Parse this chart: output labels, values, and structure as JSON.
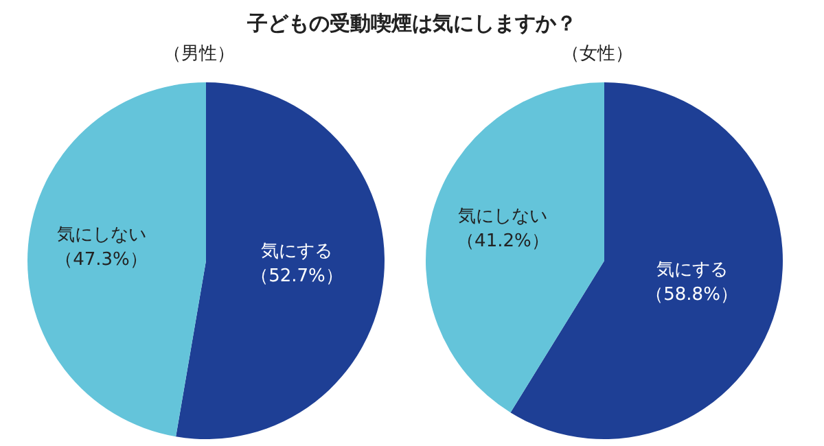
{
  "chart_data": [
    {
      "type": "pie",
      "title": "子どもの受動喫煙は気にしますか？",
      "subtitle": "（男性）",
      "categories": [
        "気にする",
        "気にしない"
      ],
      "values": [
        52.7,
        47.3
      ],
      "colors": [
        "#1e3f95",
        "#64c4da"
      ],
      "value_labels": [
        "（52.7%）",
        "（47.3%）"
      ]
    },
    {
      "type": "pie",
      "subtitle": "（女性）",
      "categories": [
        "気にする",
        "気にしない"
      ],
      "values": [
        58.8,
        41.2
      ],
      "colors": [
        "#1e3f95",
        "#64c4da"
      ],
      "value_labels": [
        "（58.8%）",
        "（41.2%）"
      ]
    }
  ]
}
